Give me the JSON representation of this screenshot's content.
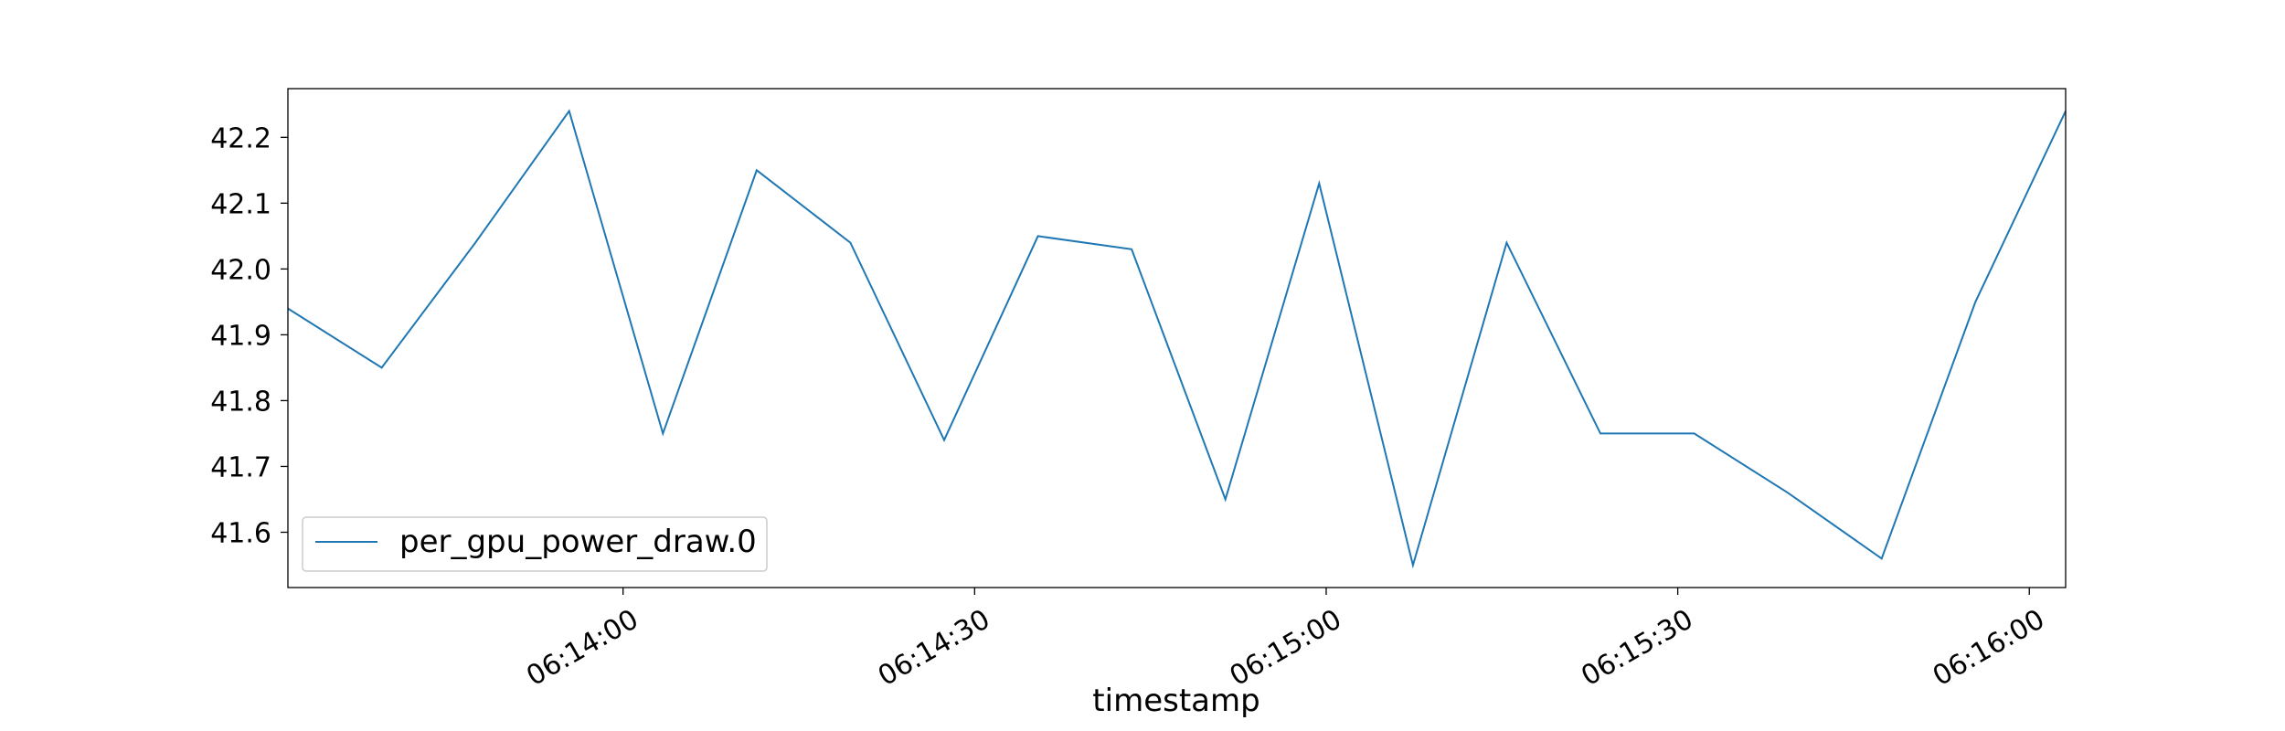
{
  "chart_data": {
    "type": "line",
    "title": "",
    "xlabel": "timestamp",
    "ylabel": "",
    "grid": false,
    "legend_position": "lower-left",
    "line_color": "#1f77b4",
    "x_ticks": [
      "06:14:00",
      "06:14:30",
      "06:15:00",
      "06:15:30",
      "06:16:00"
    ],
    "x_tick_times": [
      "06:14:00",
      "06:14:30",
      "06:15:00",
      "06:15:30",
      "06:16:00"
    ],
    "xlim": [
      "06:13:31.4",
      "06:16:03.1"
    ],
    "y_ticks": [
      41.6,
      41.7,
      41.8,
      41.9,
      42.0,
      42.1,
      42.2
    ],
    "ylim": [
      41.516,
      42.274
    ],
    "series": [
      {
        "name": "per_gpu_power_draw.0",
        "x": [
          "06:13:31.4",
          "06:13:39.4",
          "06:13:47.4",
          "06:13:55.4",
          "06:14:03.4",
          "06:14:11.4",
          "06:14:19.4",
          "06:14:27.4",
          "06:14:35.4",
          "06:14:43.4",
          "06:14:51.4",
          "06:14:59.4",
          "06:15:07.4",
          "06:15:15.4",
          "06:15:23.4",
          "06:15:31.4",
          "06:15:39.4",
          "06:15:47.4",
          "06:15:55.4",
          "06:16:03.1"
        ],
        "values": [
          41.94,
          41.85,
          42.04,
          42.24,
          41.75,
          42.15,
          42.04,
          41.74,
          42.05,
          42.03,
          41.65,
          42.13,
          41.55,
          42.04,
          41.75,
          41.75,
          41.66,
          41.56,
          41.95,
          42.24
        ]
      }
    ]
  }
}
